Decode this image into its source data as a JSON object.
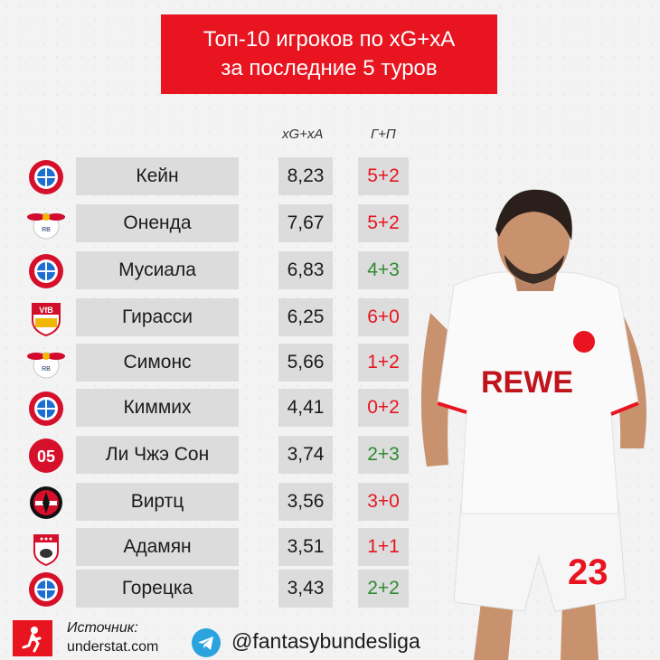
{
  "title": {
    "line1": "Топ-10 игроков по xG+xA",
    "line2": "за последние 5 туров"
  },
  "columns": {
    "xg": "xG+xA",
    "gp": "Г+П"
  },
  "rows": [
    {
      "club_icon": "bayern-icon",
      "name": "Кейн",
      "xg": "8,23",
      "gp": "5+2",
      "gp_color": "#e8141f"
    },
    {
      "club_icon": "leipzig-icon",
      "name": "Оненда",
      "xg": "7,67",
      "gp": "5+2",
      "gp_color": "#e8141f"
    },
    {
      "club_icon": "bayern-icon",
      "name": "Мусиала",
      "xg": "6,83",
      "gp": "4+3",
      "gp_color": "#2e8b2e"
    },
    {
      "club_icon": "stuttgart-icon",
      "name": "Гирасси",
      "xg": "6,25",
      "gp": "6+0",
      "gp_color": "#e8141f"
    },
    {
      "club_icon": "leipzig-icon",
      "name": "Симонс",
      "xg": "5,66",
      "gp": "1+2",
      "gp_color": "#e8141f"
    },
    {
      "club_icon": "bayern-icon",
      "name": "Киммих",
      "xg": "4,41",
      "gp": "0+2",
      "gp_color": "#e8141f"
    },
    {
      "club_icon": "mainz-icon",
      "name": "Ли Чжэ Сон",
      "xg": "3,74",
      "gp": "2+3",
      "gp_color": "#2e8b2e"
    },
    {
      "club_icon": "leverkusen-icon",
      "name": "Виртц",
      "xg": "3,56",
      "gp": "3+0",
      "gp_color": "#e8141f"
    },
    {
      "club_icon": "koln-icon",
      "name": "Адамян",
      "xg": "3,51",
      "gp": "1+1",
      "gp_color": "#e8141f"
    },
    {
      "club_icon": "bayern-icon",
      "name": "Горецка",
      "xg": "3,43",
      "gp": "2+2",
      "gp_color": "#2e8b2e"
    }
  ],
  "player_photo": {
    "shirt_sponsor": "REWE",
    "shirt_number": "23"
  },
  "footer": {
    "source_label": "Источник:",
    "source_site": "understat.com",
    "handle": "@fantasybundesliga"
  },
  "colors": {
    "accent": "#e8141f",
    "green": "#2e8b2e",
    "cell": "#dcdcdd"
  }
}
